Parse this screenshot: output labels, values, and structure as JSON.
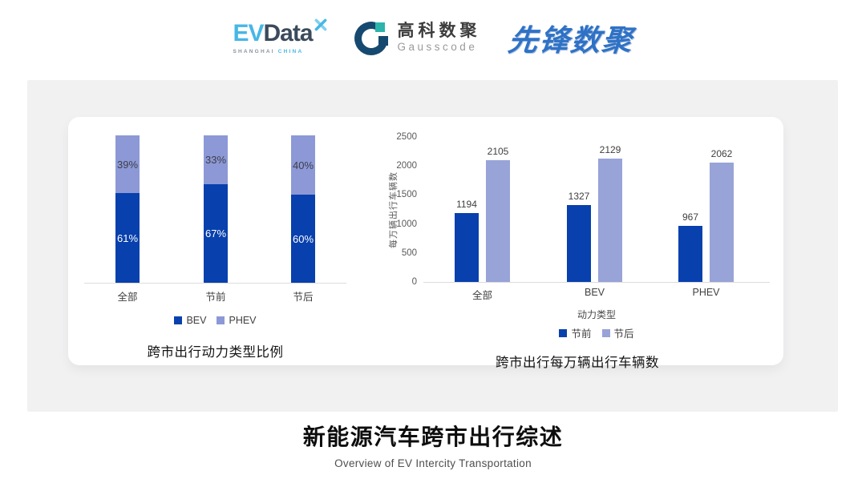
{
  "header": {
    "evdata": {
      "ev": "EV",
      "data": "Data",
      "sub_left": "SHANGHAI",
      "sub_right": "CHINA"
    },
    "gausscode": {
      "cn": "高科数聚",
      "en": "Gausscode"
    },
    "xianfeng": {
      "text": "先锋数聚"
    }
  },
  "icons": {
    "evdata_spark": "four-point cross spark, light blue",
    "gausscode_mark": "navy C-ring with teal and navy squares",
    "legend_marker": "filled square"
  },
  "colors": {
    "dark_blue": "#0840ad",
    "periwinkle_left": "#8c99d6",
    "periwinkle_right": "#98a3d8",
    "panel_gray": "#f1f1f2",
    "axis_gray": "#dcdcdc"
  },
  "chart_data": [
    {
      "type": "bar",
      "subtype": "stacked-100",
      "title": "跨市出行动力类型比例",
      "categories": [
        "全部",
        "节前",
        "节后"
      ],
      "series": [
        {
          "name": "BEV",
          "color": "#0840ad",
          "values": [
            61,
            67,
            60
          ]
        },
        {
          "name": "PHEV",
          "color": "#8c99d6",
          "values": [
            39,
            33,
            40
          ]
        }
      ],
      "value_suffix": "%",
      "xlabel": "",
      "ylabel": "",
      "ylim": [
        0,
        100
      ],
      "grid": false,
      "legend_position": "bottom"
    },
    {
      "type": "bar",
      "subtype": "grouped",
      "title": "跨市出行每万辆出行车辆数",
      "categories": [
        "全部",
        "BEV",
        "PHEV"
      ],
      "series": [
        {
          "name": "节前",
          "color": "#0840ad",
          "values": [
            1194,
            1327,
            967
          ]
        },
        {
          "name": "节后",
          "color": "#98a3d8",
          "values": [
            2105,
            2129,
            2062
          ]
        }
      ],
      "xlabel": "动力类型",
      "ylabel": "每万辆出行车辆数",
      "ylim": [
        0,
        2500
      ],
      "yticks": [
        0,
        500,
        1000,
        1500,
        2000,
        2500
      ],
      "grid": false,
      "legend_position": "bottom"
    }
  ],
  "footer": {
    "title": "新能源汽车跨市出行综述",
    "subtitle": "Overview of EV Intercity Transportation"
  }
}
